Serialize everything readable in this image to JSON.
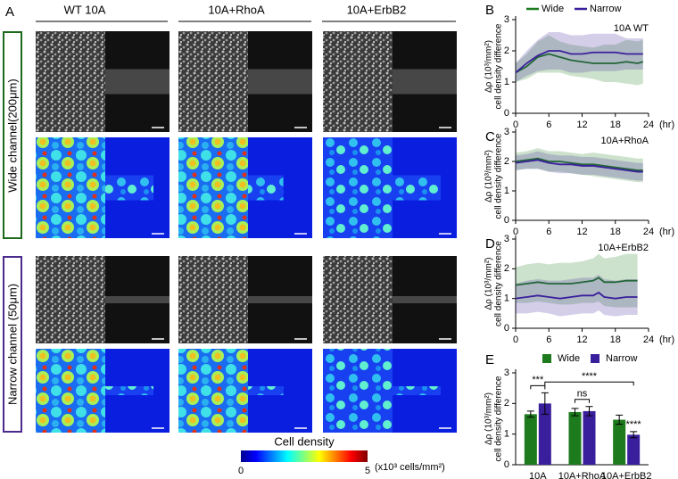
{
  "figure": {
    "panel_label": "A",
    "columns": [
      "WT 10A",
      "10A+RhoA",
      "10A+ErbB2"
    ],
    "rows": [
      "Wide channel(200μm)",
      "Narrow channel (50μm)"
    ],
    "colorbar": {
      "title": "Cell density",
      "min": "0",
      "max": "5",
      "unit": "(x10³ cells/mm²)"
    }
  },
  "chart_data": [
    {
      "type": "line",
      "label": "B",
      "annotation": "10A WT",
      "legend": true,
      "y_label": [
        "Δρ (10³/mm²)",
        "cell density difference"
      ],
      "x_label": "(hr)",
      "x": [
        0,
        2,
        4,
        6,
        8,
        10,
        12,
        14,
        16,
        18,
        20,
        22,
        23
      ],
      "xlim": [
        0,
        24
      ],
      "xticks": [
        0,
        6,
        12,
        18,
        24
      ],
      "ylim": [
        0,
        3
      ],
      "yticks": [
        0,
        1,
        2,
        3
      ],
      "series": [
        {
          "name": "Wide",
          "color": "#1d7a1d",
          "values": [
            1.3,
            1.5,
            1.8,
            1.9,
            1.8,
            1.7,
            1.65,
            1.6,
            1.6,
            1.6,
            1.65,
            1.6,
            1.65
          ],
          "errors": [
            0.3,
            0.4,
            0.5,
            0.6,
            0.5,
            0.5,
            0.5,
            0.5,
            0.6,
            0.6,
            0.7,
            0.7,
            0.7
          ]
        },
        {
          "name": "Narrow",
          "color": "#3a1f9c",
          "values": [
            1.3,
            1.6,
            1.85,
            2.0,
            2.0,
            1.9,
            1.9,
            1.95,
            1.95,
            1.95,
            1.9,
            1.9,
            1.9
          ],
          "errors": [
            0.3,
            0.4,
            0.5,
            0.6,
            0.6,
            0.6,
            0.6,
            0.6,
            0.6,
            0.6,
            0.5,
            0.5,
            0.5
          ]
        }
      ]
    },
    {
      "type": "line",
      "label": "C",
      "annotation": "10A+RhoA",
      "legend": false,
      "y_label": [
        "Δρ (10³/mm²)",
        "cell density difference"
      ],
      "x_label": "(hr)",
      "x": [
        0,
        2,
        4,
        6,
        8,
        10,
        12,
        14,
        16,
        18,
        20,
        22,
        23
      ],
      "xlim": [
        0,
        24
      ],
      "xticks": [
        0,
        6,
        12,
        18,
        24
      ],
      "ylim": [
        0,
        3
      ],
      "yticks": [
        0,
        1,
        2,
        3
      ],
      "series": [
        {
          "color": "#1d7a1d",
          "values": [
            2.0,
            2.05,
            2.1,
            2.0,
            2.0,
            1.95,
            1.9,
            1.9,
            1.85,
            1.8,
            1.75,
            1.7,
            1.7
          ],
          "errors": [
            0.3,
            0.3,
            0.35,
            0.35,
            0.35,
            0.35,
            0.35,
            0.4,
            0.4,
            0.4,
            0.4,
            0.4,
            0.4
          ]
        },
        {
          "color": "#3a1f9c",
          "values": [
            1.95,
            2.0,
            2.05,
            1.95,
            1.9,
            1.9,
            1.85,
            1.85,
            1.8,
            1.75,
            1.7,
            1.65,
            1.65
          ],
          "errors": [
            0.25,
            0.25,
            0.3,
            0.3,
            0.3,
            0.3,
            0.3,
            0.3,
            0.3,
            0.3,
            0.3,
            0.3,
            0.3
          ]
        }
      ]
    },
    {
      "type": "line",
      "label": "D",
      "annotation": "10A+ErbB2",
      "legend": false,
      "y_label": [
        "Δρ (10³/mm²)",
        "cell density difference"
      ],
      "x_label": "(hr)",
      "x": [
        0,
        2,
        4,
        6,
        8,
        10,
        12,
        14,
        15,
        16,
        18,
        20,
        22
      ],
      "xlim": [
        0,
        24
      ],
      "xticks": [
        0,
        6,
        12,
        18,
        24
      ],
      "ylim": [
        0,
        3
      ],
      "yticks": [
        0,
        1,
        2,
        3
      ],
      "series": [
        {
          "color": "#1d7a1d",
          "values": [
            1.45,
            1.5,
            1.55,
            1.5,
            1.5,
            1.5,
            1.55,
            1.6,
            1.7,
            1.55,
            1.55,
            1.6,
            1.6
          ],
          "errors": [
            0.6,
            0.65,
            0.65,
            0.65,
            0.7,
            0.7,
            0.7,
            0.75,
            0.8,
            0.8,
            0.85,
            0.9,
            0.9
          ]
        },
        {
          "color": "#3a1f9c",
          "values": [
            1.0,
            1.05,
            1.1,
            1.05,
            1.0,
            1.05,
            1.1,
            1.1,
            1.2,
            1.05,
            1.0,
            1.05,
            1.05
          ],
          "errors": [
            0.5,
            0.55,
            0.55,
            0.55,
            0.6,
            0.6,
            0.6,
            0.6,
            0.6,
            0.6,
            0.6,
            0.6,
            0.6
          ]
        }
      ]
    },
    {
      "type": "bar",
      "label": "E",
      "legend": true,
      "y_label": [
        "Δρ (10³/mm²)",
        "cell density difference"
      ],
      "categories": [
        "10A",
        "10A+RhoA",
        "10A+ErbB2"
      ],
      "ylim": [
        0,
        3
      ],
      "yticks": [
        0,
        1,
        2,
        3
      ],
      "annotations": [
        "***",
        "ns",
        "****",
        "****"
      ],
      "series": [
        {
          "name": "Wide",
          "color": "#1d7a1d",
          "values": [
            1.65,
            1.72,
            1.47
          ],
          "errors": [
            0.1,
            0.12,
            0.15
          ]
        },
        {
          "name": "Narrow",
          "color": "#3a1f9c",
          "values": [
            2.0,
            1.75,
            0.98
          ],
          "errors": [
            0.35,
            0.15,
            0.1
          ]
        }
      ]
    }
  ]
}
